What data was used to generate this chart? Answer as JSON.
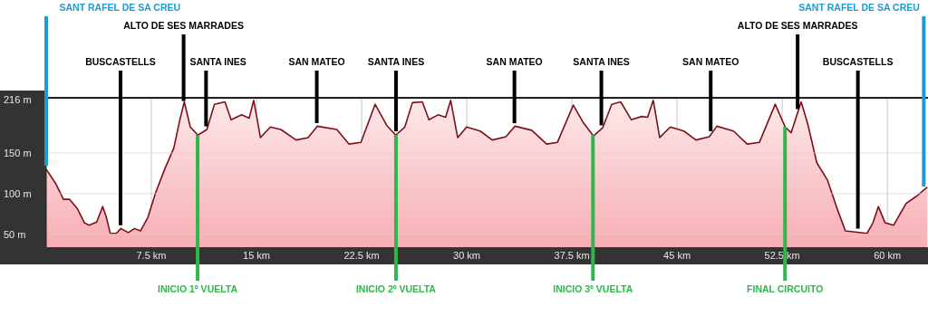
{
  "chart_data": {
    "type": "area",
    "color": "#7b1018",
    "x": [
      0,
      0.69,
      1.23,
      1.66,
      2.2,
      2.73,
      3.06,
      3.6,
      4.03,
      4.29,
      4.57,
      5.0,
      5.32,
      5.86,
      6.29,
      6.72,
      7.26,
      7.8,
      8.45,
      9.1,
      9.52,
      9.85,
      10.28,
      10.82,
      11.46,
      12.0,
      12.75,
      13.19,
      13.94,
      14.48,
      14.8,
      15.28,
      15.99,
      16.74,
      17.82,
      18.68,
      19.33,
      20.73,
      21.59,
      22.45,
      23.46,
      24.29,
      24.93,
      25.58,
      26.12,
      26.83,
      27.3,
      27.95,
      28.49,
      28.85,
      29.35,
      29.99,
      30.96,
      31.82,
      32.79,
      33.44,
      34.63,
      35.7,
      36.46,
      37.6,
      38.29,
      39.04,
      39.69,
      40.34,
      40.98,
      41.73,
      42.48,
      42.9,
      43.3,
      43.76,
      44.52,
      45.49,
      46.35,
      47.3,
      47.84,
      49.03,
      50.0,
      50.87,
      52.0,
      52.71,
      53.14,
      53.85,
      54.32,
      54.97,
      55.72,
      56.47,
      57.01,
      57.58,
      58.55,
      58.97,
      59.36,
      59.84,
      60.44,
      61.34,
      62.1,
      62.85
    ],
    "values": [
      130,
      112,
      93,
      93,
      82,
      64,
      61,
      65,
      84,
      71,
      51,
      51,
      57,
      52,
      57,
      54,
      71,
      101,
      130,
      156,
      190,
      213,
      182,
      172,
      179,
      210,
      213,
      191,
      197,
      193,
      215,
      169,
      182,
      179,
      166,
      169,
      183,
      179,
      161,
      163,
      210,
      184,
      172,
      182,
      212,
      213,
      191,
      197,
      194,
      215,
      169,
      182,
      177,
      166,
      170,
      183,
      178,
      161,
      163,
      209,
      188,
      171,
      181,
      210,
      213,
      191,
      195,
      194,
      215,
      169,
      182,
      177,
      166,
      170,
      183,
      177,
      161,
      163,
      210,
      182,
      175,
      213,
      186,
      138,
      117,
      79,
      54,
      53,
      51,
      64,
      84,
      64,
      61,
      88,
      97,
      108
    ],
    "xlim": [
      0,
      62.9
    ],
    "ylim": [
      34,
      218
    ],
    "xticks": [
      {
        "value": 7.5,
        "label": "7.5 km"
      },
      {
        "value": 15,
        "label": "15 km"
      },
      {
        "value": 22.5,
        "label": "22.5 km"
      },
      {
        "value": 30,
        "label": "30 km"
      },
      {
        "value": 37.5,
        "label": "37.5 km"
      },
      {
        "value": 45,
        "label": "45 km"
      },
      {
        "value": 52.5,
        "label": "52.5 km"
      },
      {
        "value": 60,
        "label": "60 km"
      }
    ],
    "yticks": [
      {
        "value": 50,
        "label": "50 m"
      },
      {
        "value": 100,
        "label": "100 m"
      },
      {
        "value": 150,
        "label": "150 m"
      },
      {
        "value": 216,
        "label": "216 m"
      }
    ],
    "grid": true,
    "ref_lines": [
      {
        "axis": "x",
        "value": 0,
        "label": "SANT RAFEL DE SA CREU",
        "color": "#1e9ad6"
      },
      {
        "axis": "x",
        "value": 5.3,
        "label": "BUSCASTELLS",
        "color": "#000000"
      },
      {
        "axis": "x",
        "value": 9.8,
        "label": "ALTO DE SES MARRADES",
        "color": "#000000"
      },
      {
        "axis": "x",
        "value": 11.4,
        "label": "SANTA INES",
        "color": "#000000"
      },
      {
        "axis": "x",
        "value": 10.8,
        "label": "INICIO 1º VUELTA",
        "color": "#2eb84b"
      },
      {
        "axis": "x",
        "value": 19.3,
        "label": "SAN MATEO",
        "color": "#000000"
      },
      {
        "axis": "x",
        "value": 24.95,
        "label": "SANTA INES",
        "color": "#000000"
      },
      {
        "axis": "x",
        "value": 24.95,
        "label": "INICIO 2º VUELTA",
        "color": "#2eb84b"
      },
      {
        "axis": "x",
        "value": 33.4,
        "label": "SAN MATEO",
        "color": "#000000"
      },
      {
        "axis": "x",
        "value": 39.6,
        "label": "SANTA INES",
        "color": "#000000"
      },
      {
        "axis": "x",
        "value": 39.0,
        "label": "INICIO 3º VUELTA",
        "color": "#2eb84b"
      },
      {
        "axis": "x",
        "value": 47.4,
        "label": "SAN MATEO",
        "color": "#000000"
      },
      {
        "axis": "x",
        "value": 52.7,
        "label": "FINAL CIRCUITO",
        "color": "#2eb84b"
      },
      {
        "axis": "x",
        "value": 53.6,
        "label": "ALTO DE SES MARRADES",
        "color": "#000000"
      },
      {
        "axis": "x",
        "value": 57.9,
        "label": "BUSCASTELLS",
        "color": "#000000"
      },
      {
        "axis": "x",
        "value": 62.6,
        "label": "SANT RAFEL DE SA CREU",
        "color": "#1e9ad6"
      }
    ]
  }
}
